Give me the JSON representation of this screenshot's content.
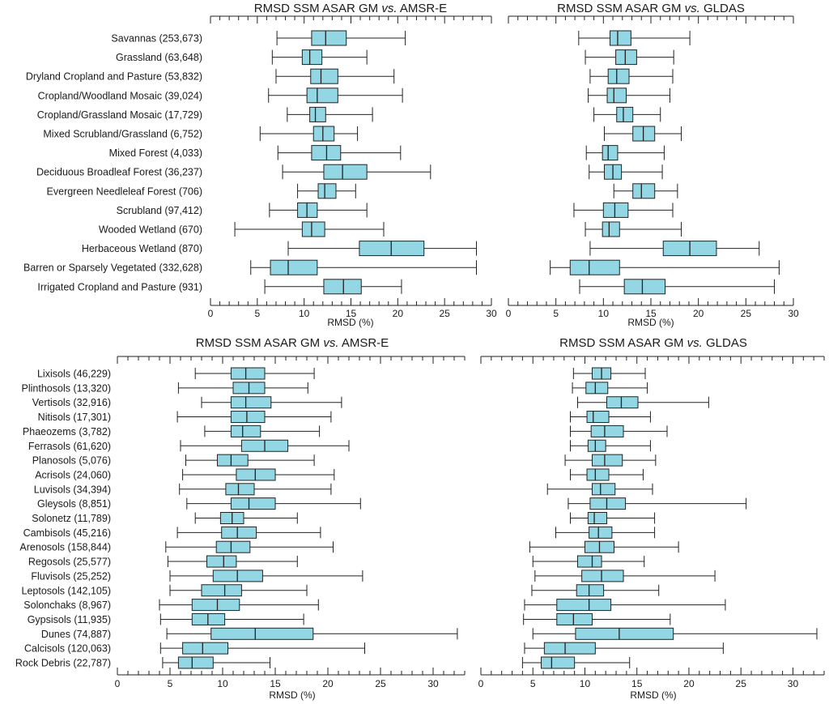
{
  "chart_data": [
    {
      "type": "boxplot",
      "title": "RMSD SSM ASAR GM vs. AMSR-E",
      "title_main": "RMSD SSM ASAR GM ",
      "title_vs": "vs.",
      "title_ref": " AMSR-E",
      "xlabel": "RMSD (%)",
      "xlim": [
        0,
        30
      ],
      "xticks": [
        0,
        5,
        10,
        15,
        20,
        25,
        30
      ],
      "categories": [
        "Savannas (253,673)",
        "Grassland (63,648)",
        "Dryland Cropland and Pasture (53,832)",
        "Cropland/Woodland Mosaic (39,024)",
        "Cropland/Grassland Mosaic (17,729)",
        "Mixed Scrubland/Grassland (6,752)",
        "Mixed Forest (4,033)",
        "Deciduous Broadleaf Forest (36,237)",
        "Evergreen Needleleaf Forest (706)",
        "Scrubland (97,412)",
        "Wooded Wetland (670)",
        "Herbaceous Wetland (870)",
        "Barren or Sparsely Vegetated (332,628)",
        "Irrigated Cropland and Pasture (931)"
      ],
      "boxes": [
        [
          7.1,
          10.8,
          12.3,
          14.5,
          20.8
        ],
        [
          6.6,
          9.8,
          10.6,
          11.9,
          16.7
        ],
        [
          7.0,
          10.7,
          11.8,
          13.6,
          19.6
        ],
        [
          6.2,
          10.3,
          11.4,
          13.6,
          20.5
        ],
        [
          8.2,
          10.6,
          11.2,
          12.3,
          17.3
        ],
        [
          5.3,
          11.0,
          12.0,
          13.2,
          15.7
        ],
        [
          7.2,
          10.8,
          12.4,
          13.9,
          20.3
        ],
        [
          7.7,
          12.1,
          14.1,
          16.7,
          23.5
        ],
        [
          9.3,
          11.5,
          12.2,
          13.4,
          15.5
        ],
        [
          6.3,
          9.3,
          10.3,
          11.4,
          16.7
        ],
        [
          2.6,
          9.8,
          10.8,
          12.2,
          18.5
        ],
        [
          8.3,
          15.9,
          19.3,
          22.8,
          28.4
        ],
        [
          4.3,
          6.4,
          8.3,
          11.4,
          28.4
        ],
        [
          5.8,
          12.1,
          14.2,
          16.1,
          20.4
        ]
      ]
    },
    {
      "type": "boxplot",
      "title": "RMSD SSM ASAR GM vs. GLDAS",
      "title_main": "RMSD SSM ASAR GM ",
      "title_vs": "vs.",
      "title_ref": " GLDAS",
      "xlabel": "RMSD (%)",
      "xlim": [
        0,
        30
      ],
      "xticks": [
        0,
        5,
        10,
        15,
        20,
        25,
        30
      ],
      "boxes": [
        [
          7.4,
          10.7,
          11.5,
          12.9,
          19.1
        ],
        [
          8.1,
          11.3,
          12.3,
          13.5,
          17.4
        ],
        [
          8.6,
          10.5,
          11.4,
          12.7,
          17.3
        ],
        [
          8.4,
          10.4,
          11.1,
          12.4,
          17.0
        ],
        [
          9.0,
          11.4,
          12.1,
          13.1,
          16.0
        ],
        [
          10.1,
          13.1,
          14.2,
          15.4,
          18.2
        ],
        [
          8.2,
          9.9,
          10.5,
          11.5,
          16.4
        ],
        [
          8.5,
          10.1,
          11.0,
          11.9,
          16.2
        ],
        [
          11.1,
          13.1,
          14.0,
          15.4,
          17.8
        ],
        [
          6.9,
          10.0,
          11.2,
          12.6,
          17.3
        ],
        [
          8.1,
          9.9,
          10.6,
          11.7,
          18.2
        ],
        [
          8.6,
          16.3,
          19.1,
          21.9,
          26.4
        ],
        [
          4.4,
          6.5,
          8.5,
          11.7,
          28.5
        ],
        [
          7.5,
          12.2,
          14.1,
          16.5,
          28.0
        ]
      ]
    },
    {
      "type": "boxplot",
      "title": "RMSD SSM ASAR GM vs. AMSR-E",
      "title_main": "RMSD SSM ASAR GM ",
      "title_vs": "vs.",
      "title_ref": " AMSR-E",
      "xlabel": "RMSD (%)",
      "xlim": [
        0,
        33
      ],
      "xticks": [
        0,
        5,
        10,
        15,
        20,
        25,
        30
      ],
      "categories": [
        "Lixisols (46,229)",
        "Plinthosols (13,320)",
        "Vertisols (32,916)",
        "Nitisols (17,301)",
        "Phaeozems (3,782)",
        "Ferrasols (61,620)",
        "Planosols (5,076)",
        "Acrisols (24,060)",
        "Luvisols (34,394)",
        "Gleysols (8,851)",
        "Solonetz (11,789)",
        "Cambisols (45,216)",
        "Arenosols (158,844)",
        "Regosols (25,577)",
        "Fluvisols (25,252)",
        "Leptosols (142,105)",
        "Solonchaks (8,967)",
        "Gypsisols (11,935)",
        "Dunes (74,887)",
        "Calcisols (120,063)",
        "Rock Debris (22,787)"
      ],
      "boxes": [
        [
          7.4,
          10.8,
          12.2,
          14.0,
          18.7
        ],
        [
          5.8,
          11.0,
          12.5,
          14.0,
          18.1
        ],
        [
          8.0,
          10.8,
          12.2,
          14.6,
          21.3
        ],
        [
          5.7,
          10.8,
          12.3,
          14.0,
          20.3
        ],
        [
          8.3,
          10.8,
          11.9,
          13.6,
          19.2
        ],
        [
          6.0,
          11.8,
          14.0,
          16.2,
          22.0
        ],
        [
          6.5,
          9.5,
          10.8,
          12.4,
          18.7
        ],
        [
          6.2,
          11.3,
          13.1,
          15.0,
          20.6
        ],
        [
          5.9,
          10.3,
          11.5,
          13.0,
          20.3
        ],
        [
          6.6,
          10.8,
          12.5,
          15.0,
          23.1
        ],
        [
          7.4,
          9.8,
          10.9,
          12.0,
          17.1
        ],
        [
          5.7,
          9.9,
          11.4,
          13.2,
          19.3
        ],
        [
          4.6,
          9.4,
          10.8,
          12.6,
          20.5
        ],
        [
          4.8,
          8.5,
          10.1,
          11.3,
          17.1
        ],
        [
          5.0,
          9.1,
          11.4,
          13.8,
          23.3
        ],
        [
          5.0,
          8.0,
          10.2,
          11.8,
          18.0
        ],
        [
          4.0,
          7.1,
          9.5,
          11.6,
          19.1
        ],
        [
          4.1,
          7.1,
          8.6,
          10.2,
          17.7
        ],
        [
          4.7,
          8.9,
          13.1,
          18.6,
          32.3
        ],
        [
          4.1,
          6.2,
          8.1,
          10.5,
          23.5
        ],
        [
          4.3,
          5.8,
          7.1,
          9.1,
          14.5
        ]
      ]
    },
    {
      "type": "boxplot",
      "title": "RMSD SSM ASAR GM vs. GLDAS",
      "title_main": "RMSD SSM ASAR GM ",
      "title_vs": "vs.",
      "title_ref": " GLDAS",
      "xlabel": "RMSD (%)",
      "xlim": [
        0,
        33
      ],
      "xticks": [
        0,
        5,
        10,
        15,
        20,
        25,
        30
      ],
      "boxes": [
        [
          8.9,
          10.7,
          11.6,
          12.5,
          15.8
        ],
        [
          8.8,
          10.1,
          11.0,
          12.2,
          16.0
        ],
        [
          9.3,
          12.1,
          13.5,
          15.1,
          21.9
        ],
        [
          8.6,
          10.2,
          10.8,
          12.3,
          16.3
        ],
        [
          8.6,
          10.6,
          11.9,
          13.7,
          17.9
        ],
        [
          8.6,
          10.3,
          11.0,
          12.0,
          16.3
        ],
        [
          8.1,
          10.7,
          11.9,
          13.6,
          16.8
        ],
        [
          8.6,
          10.2,
          11.0,
          12.3,
          15.6
        ],
        [
          6.4,
          10.7,
          11.5,
          12.9,
          16.5
        ],
        [
          8.4,
          10.5,
          12.1,
          13.9,
          25.5
        ],
        [
          8.6,
          10.3,
          10.9,
          12.1,
          16.7
        ],
        [
          7.2,
          10.4,
          11.3,
          12.6,
          16.7
        ],
        [
          4.7,
          10.0,
          11.4,
          12.8,
          19.0
        ],
        [
          5.0,
          9.3,
          10.7,
          11.6,
          15.7
        ],
        [
          5.2,
          9.7,
          11.6,
          13.7,
          22.5
        ],
        [
          4.9,
          9.2,
          10.4,
          11.8,
          17.1
        ],
        [
          4.2,
          7.3,
          10.4,
          12.5,
          23.5
        ],
        [
          4.1,
          7.3,
          8.9,
          10.7,
          18.2
        ],
        [
          5.0,
          9.1,
          13.3,
          18.5,
          32.3
        ],
        [
          4.2,
          6.1,
          8.1,
          11.0,
          23.3
        ],
        [
          4.0,
          5.8,
          6.8,
          9.0,
          14.3
        ]
      ]
    }
  ]
}
